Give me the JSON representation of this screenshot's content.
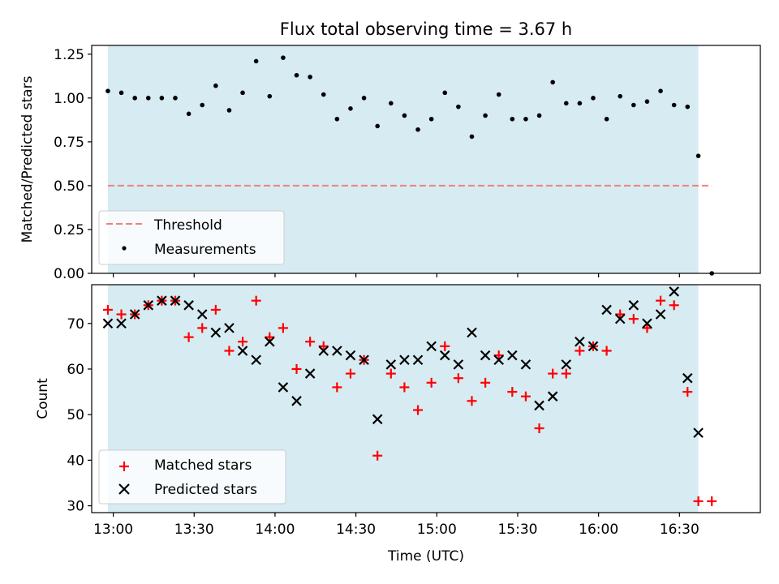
{
  "title": "Flux total observing time = 3.67 h",
  "chart_data": [
    {
      "type": "scatter",
      "panel": "top",
      "ylabel": "Matched/Predicted stars",
      "xlabel": "",
      "ylim": [
        0.0,
        1.3
      ],
      "yticks": [
        "0.00",
        "0.25",
        "0.50",
        "0.75",
        "1.00",
        "1.25"
      ],
      "xlim": [
        "12:52",
        "17:00"
      ],
      "legend_position": "lower-left",
      "shaded_span": [
        "12:58",
        "16:37"
      ],
      "threshold": {
        "name": "Threshold",
        "y": 0.5,
        "x": [
          "12:58",
          "16:42"
        ],
        "color": "#f08080"
      },
      "series": [
        {
          "name": "Measurements",
          "color": "#000000",
          "marker": "dot",
          "points": [
            [
              "12:58",
              1.04
            ],
            [
              "13:03",
              1.03
            ],
            [
              "13:08",
              1.0
            ],
            [
              "13:13",
              1.0
            ],
            [
              "13:18",
              1.0
            ],
            [
              "13:23",
              1.0
            ],
            [
              "13:28",
              0.91
            ],
            [
              "13:33",
              0.96
            ],
            [
              "13:38",
              1.07
            ],
            [
              "13:43",
              0.93
            ],
            [
              "13:48",
              1.03
            ],
            [
              "13:53",
              1.21
            ],
            [
              "13:58",
              1.01
            ],
            [
              "14:03",
              1.23
            ],
            [
              "14:08",
              1.13
            ],
            [
              "14:13",
              1.12
            ],
            [
              "14:18",
              1.02
            ],
            [
              "14:23",
              0.88
            ],
            [
              "14:28",
              0.94
            ],
            [
              "14:33",
              1.0
            ],
            [
              "14:38",
              0.84
            ],
            [
              "14:43",
              0.97
            ],
            [
              "14:48",
              0.9
            ],
            [
              "14:53",
              0.82
            ],
            [
              "14:58",
              0.88
            ],
            [
              "15:03",
              1.03
            ],
            [
              "15:08",
              0.95
            ],
            [
              "15:13",
              0.78
            ],
            [
              "15:18",
              0.9
            ],
            [
              "15:23",
              1.02
            ],
            [
              "15:28",
              0.88
            ],
            [
              "15:33",
              0.88
            ],
            [
              "15:38",
              0.9
            ],
            [
              "15:43",
              1.09
            ],
            [
              "15:48",
              0.97
            ],
            [
              "15:53",
              0.97
            ],
            [
              "15:58",
              1.0
            ],
            [
              "16:03",
              0.88
            ],
            [
              "16:08",
              1.01
            ],
            [
              "16:13",
              0.96
            ],
            [
              "16:18",
              0.98
            ],
            [
              "16:23",
              1.04
            ],
            [
              "16:28",
              0.96
            ],
            [
              "16:33",
              0.95
            ],
            [
              "16:37",
              0.67
            ],
            [
              "16:42",
              0.0
            ]
          ]
        }
      ]
    },
    {
      "type": "scatter",
      "panel": "bottom",
      "ylabel": "Count",
      "xlabel": "Time (UTC)",
      "ylim": [
        28.5,
        78.5
      ],
      "yticks": [
        "30",
        "40",
        "50",
        "60",
        "70"
      ],
      "xlim": [
        "12:52",
        "17:00"
      ],
      "xticks": [
        "13:00",
        "13:30",
        "14:00",
        "14:30",
        "15:00",
        "15:30",
        "16:00",
        "16:30"
      ],
      "legend_position": "lower-left",
      "shaded_span": [
        "12:58",
        "16:37"
      ],
      "series": [
        {
          "name": "Matched stars",
          "color": "#ff0000",
          "marker": "plus",
          "points": [
            [
              "12:58",
              73
            ],
            [
              "13:03",
              72
            ],
            [
              "13:08",
              72
            ],
            [
              "13:13",
              74
            ],
            [
              "13:18",
              75
            ],
            [
              "13:23",
              75
            ],
            [
              "13:28",
              67
            ],
            [
              "13:33",
              69
            ],
            [
              "13:38",
              73
            ],
            [
              "13:43",
              64
            ],
            [
              "13:48",
              66
            ],
            [
              "13:53",
              75
            ],
            [
              "13:58",
              67
            ],
            [
              "14:03",
              69
            ],
            [
              "14:08",
              60
            ],
            [
              "14:13",
              66
            ],
            [
              "14:18",
              65
            ],
            [
              "14:23",
              56
            ],
            [
              "14:28",
              59
            ],
            [
              "14:33",
              62
            ],
            [
              "14:38",
              41
            ],
            [
              "14:43",
              59
            ],
            [
              "14:48",
              56
            ],
            [
              "14:53",
              51
            ],
            [
              "14:58",
              57
            ],
            [
              "15:03",
              65
            ],
            [
              "15:08",
              58
            ],
            [
              "15:13",
              53
            ],
            [
              "15:18",
              57
            ],
            [
              "15:23",
              63
            ],
            [
              "15:28",
              55
            ],
            [
              "15:33",
              54
            ],
            [
              "15:38",
              47
            ],
            [
              "15:43",
              59
            ],
            [
              "15:48",
              59
            ],
            [
              "15:53",
              64
            ],
            [
              "15:58",
              65
            ],
            [
              "16:03",
              64
            ],
            [
              "16:08",
              72
            ],
            [
              "16:13",
              71
            ],
            [
              "16:18",
              69
            ],
            [
              "16:23",
              75
            ],
            [
              "16:28",
              74
            ],
            [
              "16:33",
              55
            ],
            [
              "16:37",
              31
            ],
            [
              "16:42",
              31
            ]
          ]
        },
        {
          "name": "Predicted stars",
          "color": "#000000",
          "marker": "x",
          "points": [
            [
              "12:58",
              70
            ],
            [
              "13:03",
              70
            ],
            [
              "13:08",
              72
            ],
            [
              "13:13",
              74
            ],
            [
              "13:18",
              75
            ],
            [
              "13:23",
              75
            ],
            [
              "13:28",
              74
            ],
            [
              "13:33",
              72
            ],
            [
              "13:38",
              68
            ],
            [
              "13:43",
              69
            ],
            [
              "13:48",
              64
            ],
            [
              "13:53",
              62
            ],
            [
              "13:58",
              66
            ],
            [
              "14:03",
              56
            ],
            [
              "14:08",
              53
            ],
            [
              "14:13",
              59
            ],
            [
              "14:18",
              64
            ],
            [
              "14:23",
              64
            ],
            [
              "14:28",
              63
            ],
            [
              "14:33",
              62
            ],
            [
              "14:38",
              49
            ],
            [
              "14:43",
              61
            ],
            [
              "14:48",
              62
            ],
            [
              "14:53",
              62
            ],
            [
              "14:58",
              65
            ],
            [
              "15:03",
              63
            ],
            [
              "15:08",
              61
            ],
            [
              "15:13",
              68
            ],
            [
              "15:18",
              63
            ],
            [
              "15:23",
              62
            ],
            [
              "15:28",
              63
            ],
            [
              "15:33",
              61
            ],
            [
              "15:38",
              52
            ],
            [
              "15:43",
              54
            ],
            [
              "15:48",
              61
            ],
            [
              "15:53",
              66
            ],
            [
              "15:58",
              65
            ],
            [
              "16:03",
              73
            ],
            [
              "16:08",
              71
            ],
            [
              "16:13",
              74
            ],
            [
              "16:18",
              70
            ],
            [
              "16:23",
              72
            ],
            [
              "16:28",
              77
            ],
            [
              "16:33",
              58
            ],
            [
              "16:37",
              46
            ]
          ]
        }
      ]
    }
  ],
  "colors": {
    "shade": "#add8e6",
    "shade_opacity": 0.5,
    "threshold": "#f08080",
    "axes": "#000000"
  }
}
